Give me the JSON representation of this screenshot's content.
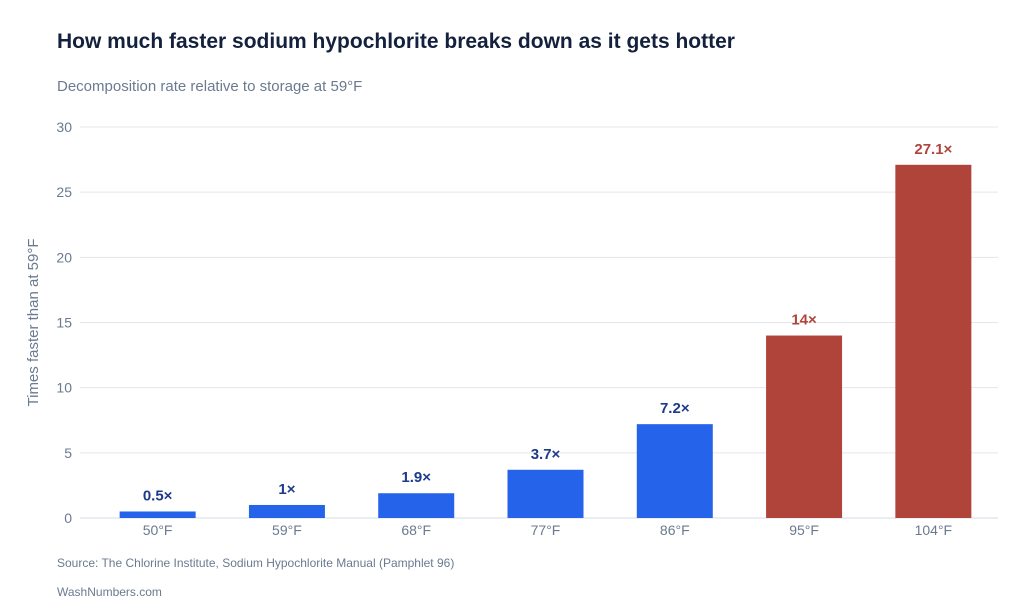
{
  "chart_data": {
    "type": "bar",
    "title": "How much faster sodium hypochlorite breaks down as it gets hotter",
    "subtitle": "Decomposition rate relative to storage at 59°F",
    "ylabel": "Times faster than at 59°F",
    "xlabel": "",
    "categories": [
      "50°F",
      "59°F",
      "68°F",
      "77°F",
      "86°F",
      "95°F",
      "104°F"
    ],
    "values": [
      0.5,
      1,
      1.9,
      3.7,
      7.2,
      14,
      27.1
    ],
    "data_labels": [
      "0.5×",
      "1×",
      "1.9×",
      "3.7×",
      "7.2×",
      "14×",
      "27.1×"
    ],
    "ylim": [
      0,
      30
    ],
    "yticks": [
      0,
      5,
      10,
      15,
      20,
      25,
      30
    ],
    "grid": true,
    "colors": {
      "normal": "#2563eb",
      "high": "#b0443a",
      "normal_label": "#1e3a8a",
      "high_label": "#b0443a"
    },
    "highlight_threshold": 14
  },
  "footer": {
    "source": "Source: The Chlorine Institute, Sodium Hypochlorite Manual (Pamphlet 96)",
    "brand": "WashNumbers.com"
  }
}
